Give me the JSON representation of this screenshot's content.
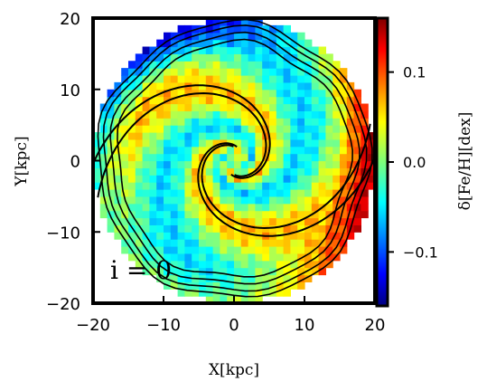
{
  "chart_data": {
    "type": "heatmap",
    "title": "",
    "xlabel": "X[kpc]",
    "ylabel": "Y[kpc]",
    "xlim": [
      -20,
      20
    ],
    "ylim": [
      -20,
      20
    ],
    "x_ticks": [
      -20,
      -10,
      0,
      10,
      20
    ],
    "y_ticks": [
      -20,
      -10,
      0,
      10,
      20
    ],
    "x_tick_labels": [
      "−20",
      "−10",
      "0",
      "10",
      "20"
    ],
    "y_tick_labels": [
      "−20",
      "−10",
      "0",
      "10",
      "20"
    ],
    "disk_radius": 20,
    "colorbar": {
      "label": "δ[Fe/H][dex]",
      "range": [
        -0.16,
        0.16
      ],
      "ticks": [
        0.1,
        0.0,
        -0.1
      ],
      "tick_labels": [
        "0.1",
        "0.0",
        "−0.1"
      ],
      "colormap": "jet"
    },
    "annotation": "i = 0",
    "field": {
      "spiral_arms": 2,
      "spiral_pitch_deg": 25,
      "arm_amplitude": 0.055,
      "background_level": 0.005,
      "outer_rim_level": 0.11
    },
    "contours": {
      "arm_offsets_deg": [
        0,
        180
      ],
      "outer_rim_rings": [
        16.5,
        17.5,
        18.5,
        19.3
      ]
    }
  }
}
